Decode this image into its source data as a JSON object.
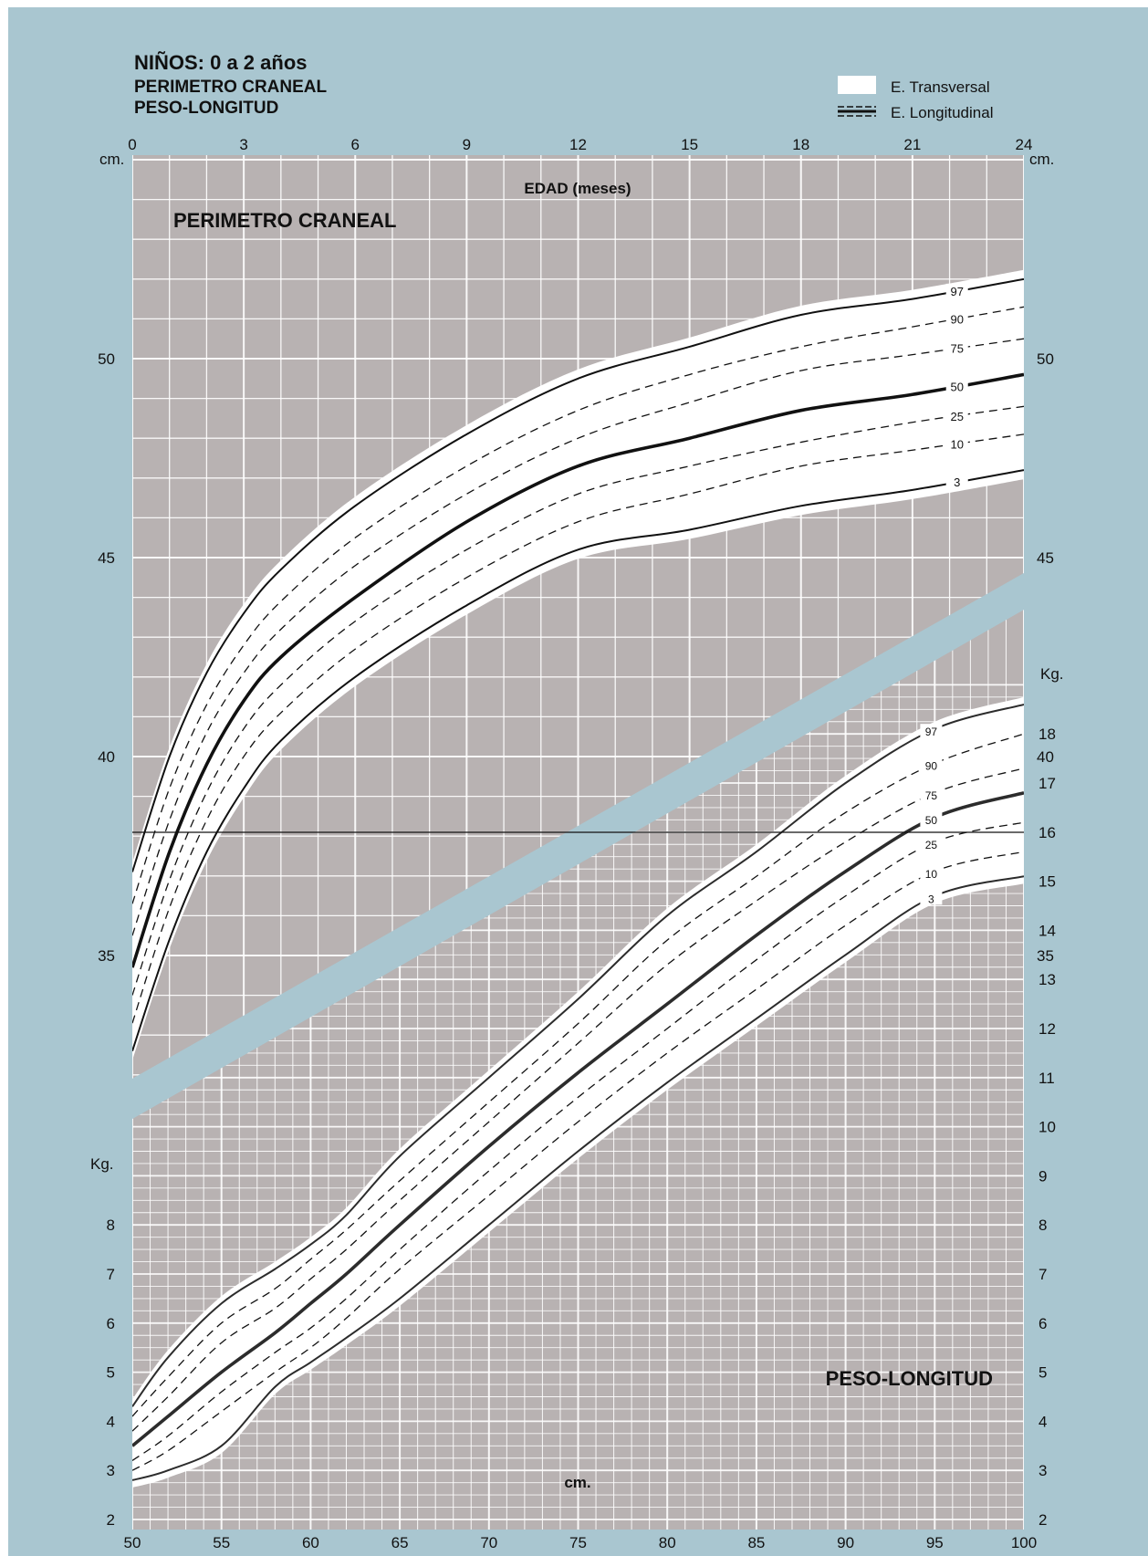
{
  "header": {
    "title": "NIÑOS: 0 a 2 años",
    "subtitle1": "PERIMETRO CRANEAL",
    "subtitle2": "PESO-LONGITUD"
  },
  "legend": {
    "transversal": "E. Transversal",
    "longitudinal": "E. Longitudinal",
    "position": "top-right"
  },
  "colors": {
    "background": "#a9c6d0",
    "plot": "#b8b2b2",
    "band": "#ffffff",
    "grid": "#ffffff",
    "curve": "#111111"
  },
  "chart_data": [
    {
      "type": "line",
      "title": "PERIMETRO CRANEAL",
      "xlabel": "EDAD (meses)",
      "ylabel": "cm.",
      "y2label": "cm.",
      "xlim": [
        0,
        24
      ],
      "ylim": [
        31,
        56
      ],
      "xticks": [
        0,
        3,
        6,
        9,
        12,
        15,
        18,
        21,
        24
      ],
      "yticks": [
        35,
        40,
        45,
        50
      ],
      "grid": true,
      "x": [
        0,
        1,
        2,
        3,
        4,
        6,
        9,
        12,
        15,
        18,
        21,
        24
      ],
      "series": [
        {
          "name": "97",
          "values": [
            37.1,
            40.0,
            42.1,
            43.6,
            44.7,
            46.3,
            48.1,
            49.5,
            50.3,
            51.1,
            51.5,
            52.0
          ]
        },
        {
          "name": "90",
          "values": [
            36.3,
            39.2,
            41.3,
            42.8,
            43.9,
            45.5,
            47.3,
            48.7,
            49.6,
            50.3,
            50.8,
            51.3
          ]
        },
        {
          "name": "75",
          "values": [
            35.5,
            38.4,
            40.6,
            42.1,
            43.2,
            44.8,
            46.6,
            48.0,
            48.9,
            49.7,
            50.1,
            50.5
          ]
        },
        {
          "name": "50",
          "values": [
            34.7,
            37.6,
            39.8,
            41.4,
            42.5,
            44.0,
            45.9,
            47.3,
            48.0,
            48.7,
            49.1,
            49.6
          ]
        },
        {
          "name": "25",
          "values": [
            34.0,
            36.9,
            39.1,
            40.7,
            41.8,
            43.4,
            45.2,
            46.6,
            47.3,
            47.9,
            48.4,
            48.8
          ]
        },
        {
          "name": "10",
          "values": [
            33.3,
            36.2,
            38.4,
            40.0,
            41.1,
            42.7,
            44.5,
            45.9,
            46.6,
            47.3,
            47.7,
            48.1
          ]
        },
        {
          "name": "3",
          "values": [
            32.6,
            35.4,
            37.6,
            39.2,
            40.4,
            42.0,
            43.8,
            45.2,
            45.7,
            46.3,
            46.7,
            47.2
          ]
        }
      ]
    },
    {
      "type": "line",
      "title": "PESO-LONGITUD",
      "xlabel": "cm.",
      "ylabel": "Kg.",
      "y2label": "Kg.",
      "xlim": [
        50,
        100
      ],
      "ylim": [
        2,
        19
      ],
      "xticks": [
        50,
        55,
        60,
        65,
        70,
        75,
        80,
        85,
        90,
        95,
        100
      ],
      "yticks_left": [
        2,
        3,
        4,
        5,
        6,
        7,
        8
      ],
      "yticks_right": [
        2,
        3,
        4,
        5,
        6,
        7,
        8,
        9,
        10,
        11,
        12,
        13,
        14,
        15,
        16,
        17,
        18
      ],
      "grid": true,
      "x": [
        50,
        52,
        55,
        58,
        60,
        62,
        65,
        70,
        75,
        80,
        85,
        90,
        95,
        100
      ],
      "series": [
        {
          "name": "97",
          "values": [
            4.3,
            5.3,
            6.4,
            7.1,
            7.6,
            8.2,
            9.4,
            11.0,
            12.6,
            14.3,
            15.6,
            17.0,
            18.1,
            18.6
          ]
        },
        {
          "name": "90",
          "values": [
            4.1,
            4.9,
            6.0,
            6.7,
            7.3,
            7.9,
            8.9,
            10.5,
            12.1,
            13.8,
            15.1,
            16.4,
            17.4,
            18.0
          ]
        },
        {
          "name": "75",
          "values": [
            3.8,
            4.5,
            5.6,
            6.3,
            6.9,
            7.5,
            8.5,
            10.1,
            11.7,
            13.3,
            14.6,
            15.8,
            16.8,
            17.3
          ]
        },
        {
          "name": "50",
          "values": [
            3.5,
            4.1,
            5.0,
            5.8,
            6.4,
            7.0,
            8.0,
            9.6,
            11.1,
            12.5,
            13.9,
            15.2,
            16.3,
            16.8
          ]
        },
        {
          "name": "25",
          "values": [
            3.2,
            3.7,
            4.6,
            5.4,
            5.9,
            6.5,
            7.5,
            9.1,
            10.6,
            12.0,
            13.4,
            14.7,
            15.8,
            16.2
          ]
        },
        {
          "name": "10",
          "values": [
            3.0,
            3.4,
            4.2,
            5.0,
            5.5,
            6.1,
            7.1,
            8.6,
            10.1,
            11.5,
            12.8,
            14.1,
            15.2,
            15.6
          ]
        },
        {
          "name": "3",
          "values": [
            2.8,
            3.0,
            3.5,
            4.7,
            5.2,
            5.7,
            6.5,
            8.0,
            9.5,
            10.9,
            12.2,
            13.5,
            14.7,
            15.1
          ]
        }
      ]
    }
  ]
}
